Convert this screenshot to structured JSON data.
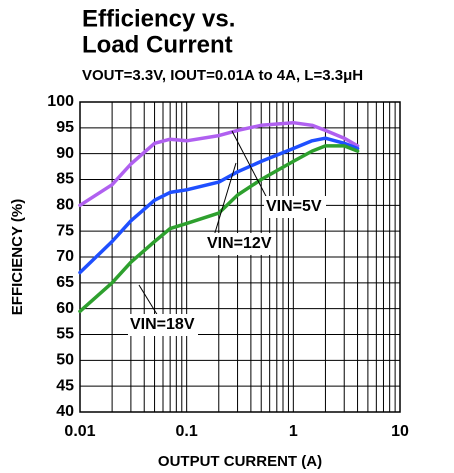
{
  "chart_data": {
    "type": "line",
    "title": [
      "Efficiency  vs.",
      "Load Current"
    ],
    "subtitle": "VOUT=3.3V, IOUT=0.01A to 4A, L=3.3μH",
    "x_label": "OUTPUT CURRENT (A)",
    "y_label": "EFFICIENCY (%)",
    "x": [
      0.01,
      0.02,
      0.03,
      0.05,
      0.07,
      0.1,
      0.2,
      0.3,
      0.5,
      1,
      1.5,
      2,
      3,
      4
    ],
    "series": [
      {
        "name": "VIN=5V",
        "color": "#b060f0",
        "values": [
          80,
          84,
          88,
          92,
          92.8,
          92.5,
          93.5,
          94.5,
          95.5,
          96,
          95.5,
          94.5,
          93,
          91.5
        ]
      },
      {
        "name": "VIN=12V",
        "color": "#1f4fff",
        "values": [
          67,
          73,
          77,
          81,
          82.5,
          83,
          84.5,
          86.5,
          88.5,
          91,
          92.5,
          93,
          92,
          91
        ]
      },
      {
        "name": "VIN=18V",
        "color": "#2ea02e",
        "values": [
          59.5,
          65,
          69,
          73,
          75.5,
          76.5,
          78.5,
          82,
          85,
          88.5,
          90.5,
          91.5,
          91.5,
          90.5
        ]
      }
    ],
    "xlim": [
      0.01,
      10
    ],
    "xticks": [
      0.01,
      0.1,
      1,
      10
    ],
    "xscale": "log",
    "ylim": [
      40,
      100
    ],
    "yticks": [
      40,
      45,
      50,
      55,
      60,
      65,
      70,
      75,
      80,
      85,
      90,
      95,
      100
    ],
    "grid": true
  }
}
